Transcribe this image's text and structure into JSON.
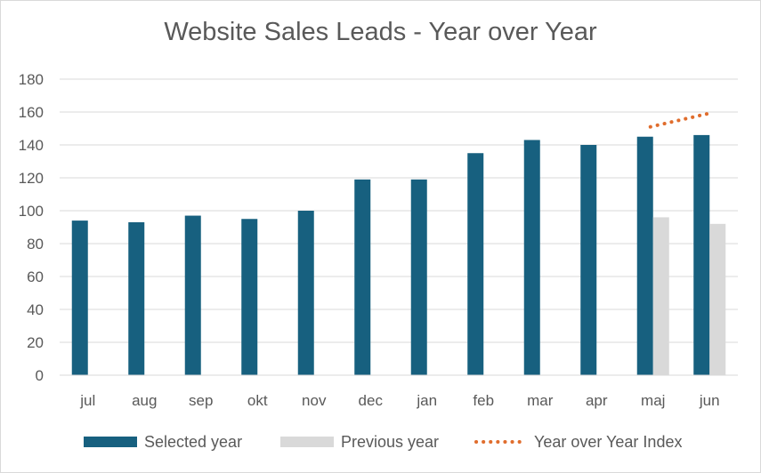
{
  "chart_data": {
    "type": "bar",
    "title": "Website Sales Leads - Year over Year",
    "categories": [
      "jul",
      "aug",
      "sep",
      "okt",
      "nov",
      "dec",
      "jan",
      "feb",
      "mar",
      "apr",
      "maj",
      "jun"
    ],
    "series": [
      {
        "name": "Selected year",
        "type": "bar",
        "color": "#17607f",
        "values": [
          94,
          93,
          97,
          95,
          100,
          119,
          119,
          135,
          143,
          140,
          145,
          146
        ]
      },
      {
        "name": "Previous year",
        "type": "bar",
        "color": "#d9d9d9",
        "values": [
          null,
          null,
          null,
          null,
          null,
          null,
          null,
          null,
          null,
          null,
          96,
          92
        ]
      },
      {
        "name": "Year over Year Index",
        "type": "line",
        "style": "dotted",
        "color": "#e06d2d",
        "values": [
          null,
          null,
          null,
          null,
          null,
          null,
          null,
          null,
          null,
          null,
          151,
          159
        ]
      }
    ],
    "ylim": [
      0,
      180
    ],
    "yticks": [
      0,
      20,
      40,
      60,
      80,
      100,
      120,
      140,
      160,
      180
    ],
    "grid": true,
    "legend_position": "bottom",
    "xlabel": "",
    "ylabel": ""
  }
}
